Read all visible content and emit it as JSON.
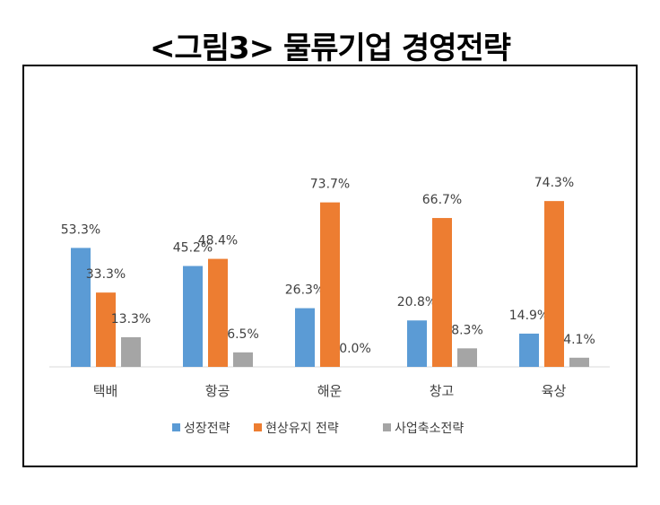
{
  "title": "<그림3> 물류기업 경영전략",
  "chart_data": {
    "type": "bar",
    "categories": [
      "택배",
      "항공",
      "해운",
      "창고",
      "육상"
    ],
    "series": [
      {
        "name": "성장전략",
        "values": [
          53.3,
          45.2,
          26.3,
          20.8,
          14.9
        ],
        "labels": [
          "53.3%",
          "45.2%",
          "26.3%",
          "20.8%",
          "14.9%"
        ],
        "color": "#5B9BD5"
      },
      {
        "name": "현상유지 전략",
        "values": [
          33.3,
          48.4,
          73.7,
          66.7,
          74.3
        ],
        "labels": [
          "33.3%",
          "48.4%",
          "73.7%",
          "66.7%",
          "74.3%"
        ],
        "color": "#ED7D31"
      },
      {
        "name": "사업축소전략",
        "values": [
          13.3,
          6.5,
          0.0,
          8.3,
          4.1
        ],
        "labels": [
          "13.3%",
          "6.5%",
          "0.0%",
          "8.3%",
          "4.1%"
        ],
        "color": "#A5A5A5"
      }
    ],
    "ylim": [
      0,
      80
    ],
    "grid": false,
    "legend_position": "bottom"
  }
}
